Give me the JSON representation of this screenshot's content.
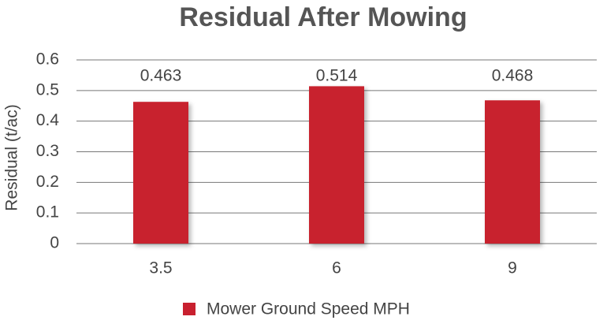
{
  "chart_data": {
    "type": "bar",
    "title": "Residual After Mowing",
    "y_label": "Residual (t/ac)",
    "categories": [
      "3.5",
      "6",
      "9"
    ],
    "series": [
      {
        "name": "Mower Ground Speed MPH",
        "color": "#c8202f",
        "values": [
          0.463,
          0.514,
          0.468
        ]
      }
    ],
    "ylim": [
      0,
      0.6
    ],
    "yticks": [
      0,
      0.1,
      0.2,
      0.3,
      0.4,
      0.5,
      0.6
    ],
    "grid": true,
    "legend": "bottom"
  }
}
